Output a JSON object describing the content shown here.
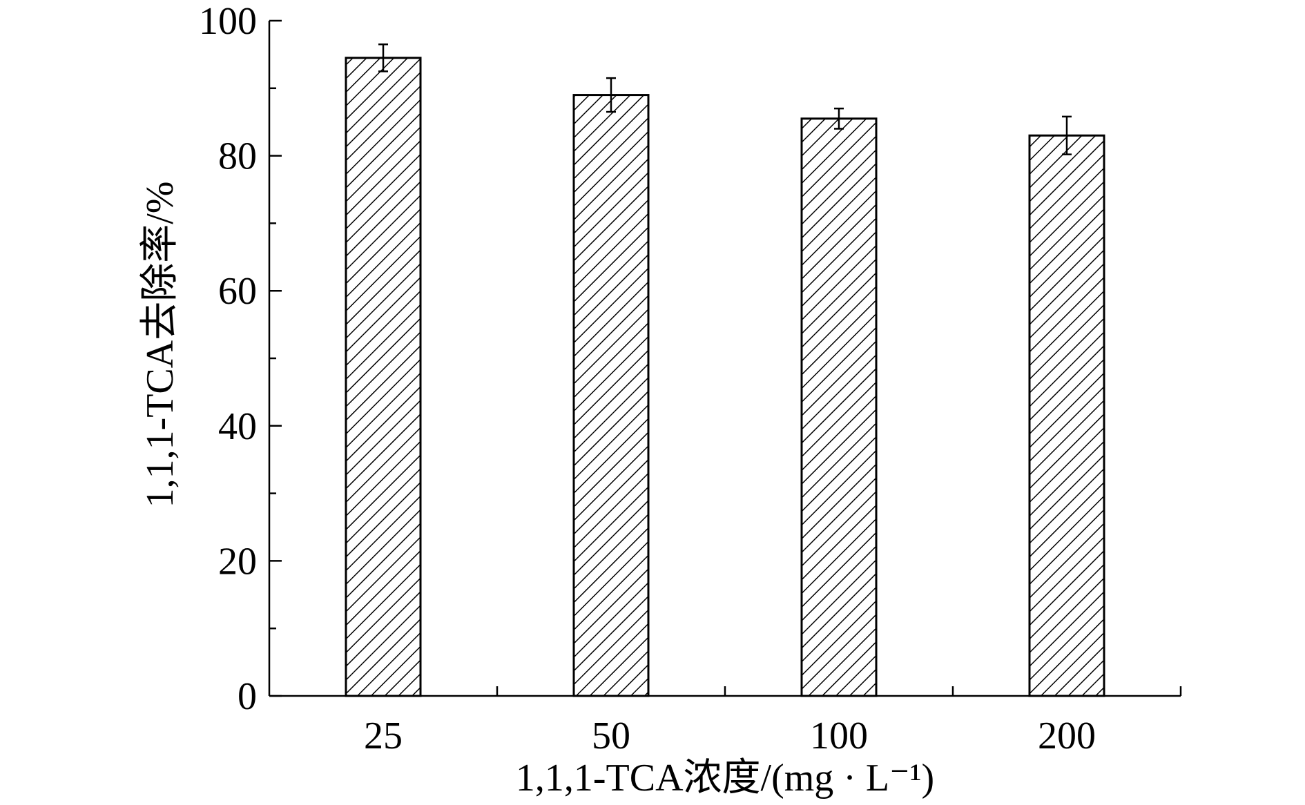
{
  "chart_data": {
    "type": "bar",
    "title": "",
    "categories": [
      "25",
      "50",
      "100",
      "200"
    ],
    "values": [
      94.5,
      89,
      85.5,
      83
    ],
    "errors": [
      2.0,
      2.5,
      1.5,
      2.8
    ],
    "xlabel": "1,1,1-TCA浓度/(mg · L⁻¹)",
    "ylabel": "1,1,1-TCA去除率/%",
    "ylim": [
      0,
      100
    ],
    "yticks": [
      0,
      20,
      40,
      60,
      80,
      100
    ],
    "grid": false,
    "legend": "none",
    "bar_fill": "diagonal-hatch",
    "colors": {
      "stroke": "#000000",
      "background": "#ffffff"
    }
  }
}
